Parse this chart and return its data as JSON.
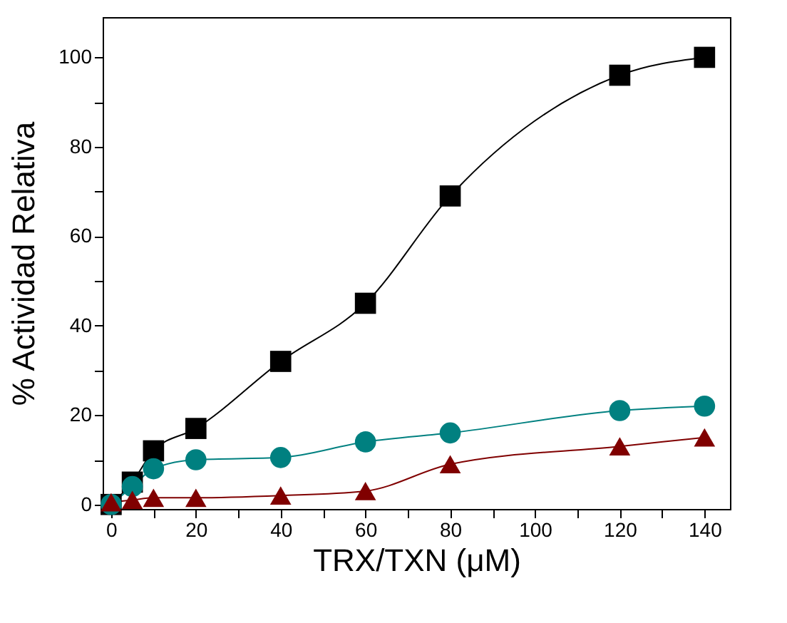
{
  "chart_data": {
    "type": "line",
    "xlabel": "TRX/TXN (μM)",
    "ylabel": "% Actividad Relativa",
    "x": [
      0,
      5,
      10,
      20,
      40,
      60,
      80,
      120,
      140
    ],
    "series": [
      {
        "color": "#000000",
        "marker": "square",
        "values": [
          0,
          5,
          12,
          17,
          32,
          45,
          69,
          96,
          100
        ]
      },
      {
        "color": "#008080",
        "marker": "circle",
        "values": [
          0,
          4,
          8,
          10,
          10.5,
          14,
          16,
          21,
          22
        ]
      },
      {
        "color": "#800000",
        "marker": "triangle",
        "values": [
          0.5,
          1,
          1.5,
          1.5,
          2,
          3,
          9,
          13,
          15
        ]
      }
    ],
    "xlim": [
      -2,
      146
    ],
    "ylim": [
      -1,
      109
    ],
    "xticks": [
      0,
      {
        "value": 10,
        "label": null
      },
      20,
      {
        "value": 30,
        "label": null
      },
      40,
      {
        "value": 50,
        "label": null
      },
      60,
      {
        "value": 70,
        "label": null
      },
      80,
      {
        "value": 90,
        "label": null
      },
      100,
      {
        "value": 110,
        "label": null
      },
      120,
      {
        "value": 130,
        "label": null
      },
      140
    ],
    "yticks": [
      0,
      {
        "value": 10,
        "label": null
      },
      20,
      {
        "value": 30,
        "label": null
      },
      40,
      {
        "value": 50,
        "label": null
      },
      60,
      {
        "value": 70,
        "label": null
      },
      80,
      {
        "value": 90,
        "label": null
      },
      100
    ],
    "grid": false,
    "legend": false,
    "line_style": "solid"
  }
}
